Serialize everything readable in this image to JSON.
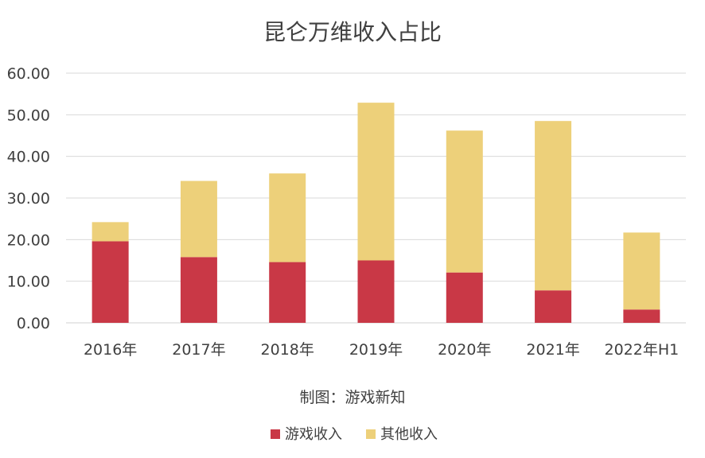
{
  "chart_data": {
    "type": "bar",
    "stacked": true,
    "title": "昆仑万维收入占比",
    "categories": [
      "2016年",
      "2017年",
      "2018年",
      "2019年",
      "2020年",
      "2021年",
      "2022年H1"
    ],
    "series": [
      {
        "name": "游戏收入",
        "color": "#c93846",
        "values": [
          19.6,
          15.8,
          14.6,
          15.0,
          12.1,
          7.8,
          3.2
        ]
      },
      {
        "name": "其他收入",
        "color": "#edd07a",
        "values": [
          4.6,
          18.3,
          21.3,
          37.9,
          34.1,
          40.7,
          18.5
        ]
      }
    ],
    "yticks": [
      "0.00",
      "10.00",
      "20.00",
      "30.00",
      "40.00",
      "50.00",
      "60.00"
    ],
    "ylim": [
      0,
      60
    ],
    "grid": true,
    "caption": "制图：游戏新知",
    "legend_position": "bottom"
  }
}
